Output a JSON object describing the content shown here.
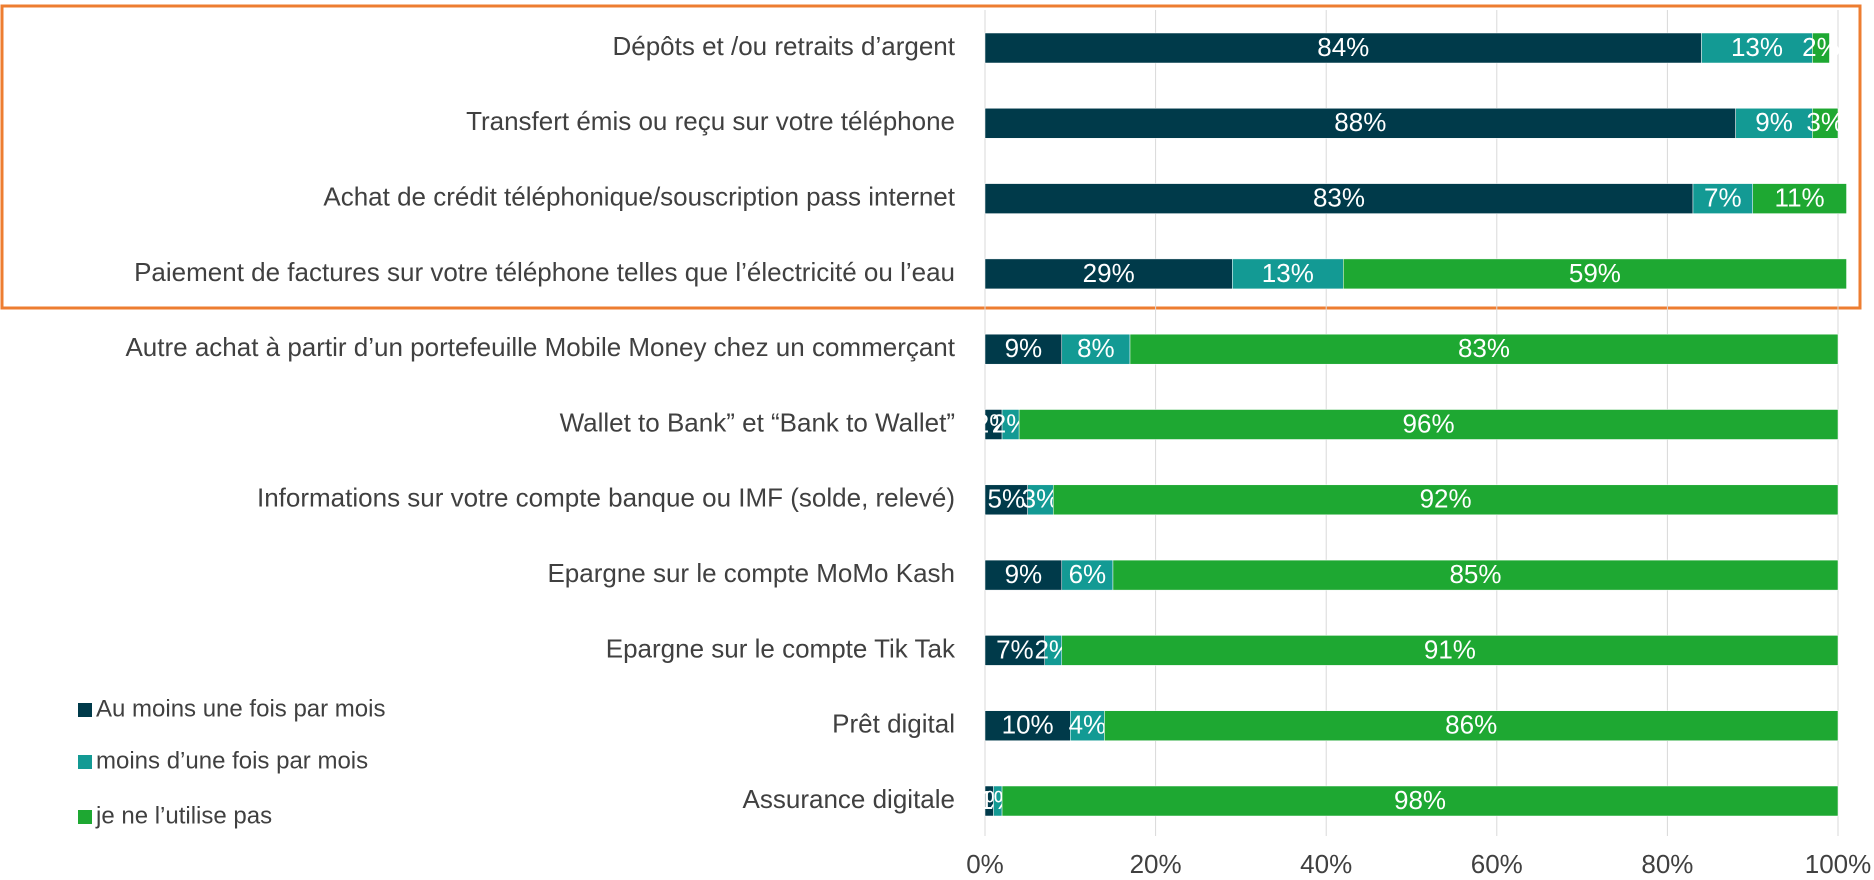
{
  "chart_data": {
    "type": "stacked_barh",
    "categories": [
      "Dépôts et /ou retraits d’argent",
      "Transfert émis ou reçu sur votre téléphone",
      "Achat de crédit téléphonique/souscription pass internet",
      "Paiement de factures sur votre téléphone telles que l’électricité ou l’eau",
      "Autre achat à partir d’un portefeuille Mobile Money chez un commerçant",
      "Wallet to Bank” et “Bank to Wallet”",
      "Informations sur votre compte banque ou IMF (solde, relevé)",
      "Epargne sur le compte MoMo Kash",
      "Epargne sur le compte Tik Tak",
      "Prêt digital",
      "Assurance digitale"
    ],
    "series": [
      {
        "name": "Au moins une fois par mois",
        "color": "#003a4a",
        "values": [
          84,
          88,
          83,
          29,
          9,
          2,
          5,
          9,
          7,
          10,
          1
        ],
        "value_labels": [
          "84%",
          "88%",
          "83%",
          "29%",
          "9%",
          "2%",
          "5%",
          "9%",
          "7%",
          "10%",
          "1%"
        ]
      },
      {
        "name": "moins d’une fois par mois",
        "color": "#139a94",
        "values": [
          13,
          9,
          7,
          13,
          8,
          2,
          3,
          6,
          2,
          4,
          1
        ],
        "value_labels": [
          "13%",
          "9%",
          "7%",
          "13%",
          "8%",
          "2%",
          "3%",
          "6%",
          "2%",
          "4%",
          "1%"
        ]
      },
      {
        "name": "je ne l’utilise pas",
        "color": "#1ea832",
        "values": [
          2,
          3,
          11,
          59,
          83,
          96,
          92,
          85,
          91,
          86,
          98
        ],
        "value_labels": [
          "2%",
          "3%",
          "11%",
          "59%",
          "83%",
          "96%",
          "92%",
          "85%",
          "91%",
          "86%",
          "98%"
        ]
      }
    ],
    "xlim": [
      0,
      100
    ],
    "xticks": [
      {
        "value": 0,
        "label": "0%"
      },
      {
        "value": 20,
        "label": "20%"
      },
      {
        "value": 40,
        "label": "40%"
      },
      {
        "value": 60,
        "label": "60%"
      },
      {
        "value": 80,
        "label": "80%"
      },
      {
        "value": 100,
        "label": "100%"
      }
    ],
    "grid": true,
    "legend": "lower left"
  }
}
